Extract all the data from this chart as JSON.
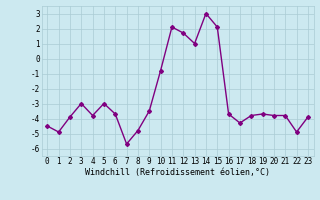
{
  "hours": [
    0,
    1,
    2,
    3,
    4,
    5,
    6,
    7,
    8,
    9,
    10,
    11,
    12,
    13,
    14,
    15,
    16,
    17,
    18,
    19,
    20,
    21,
    22,
    23
  ],
  "values": [
    -4.5,
    -4.9,
    -3.9,
    -3.0,
    -3.8,
    -3.0,
    -3.7,
    -5.7,
    -4.8,
    -3.5,
    -0.8,
    2.1,
    1.7,
    1.0,
    3.0,
    2.1,
    -3.7,
    -4.3,
    -3.8,
    -3.7,
    -3.8,
    -3.8,
    -4.9,
    -3.9
  ],
  "line_color": "#800080",
  "marker": "D",
  "marker_size": 2.0,
  "line_width": 1.0,
  "bg_color": "#cce9f0",
  "grid_color": "#aaccd4",
  "xlabel": "Windchill (Refroidissement éolien,°C)",
  "ylim": [
    -6.5,
    3.5
  ],
  "xlim": [
    -0.5,
    23.5
  ],
  "yticks": [
    -6,
    -5,
    -4,
    -3,
    -2,
    -1,
    0,
    1,
    2,
    3
  ],
  "xticks": [
    0,
    1,
    2,
    3,
    4,
    5,
    6,
    7,
    8,
    9,
    10,
    11,
    12,
    13,
    14,
    15,
    16,
    17,
    18,
    19,
    20,
    21,
    22,
    23
  ],
  "tick_fontsize": 5.5,
  "xlabel_fontsize": 6.0
}
